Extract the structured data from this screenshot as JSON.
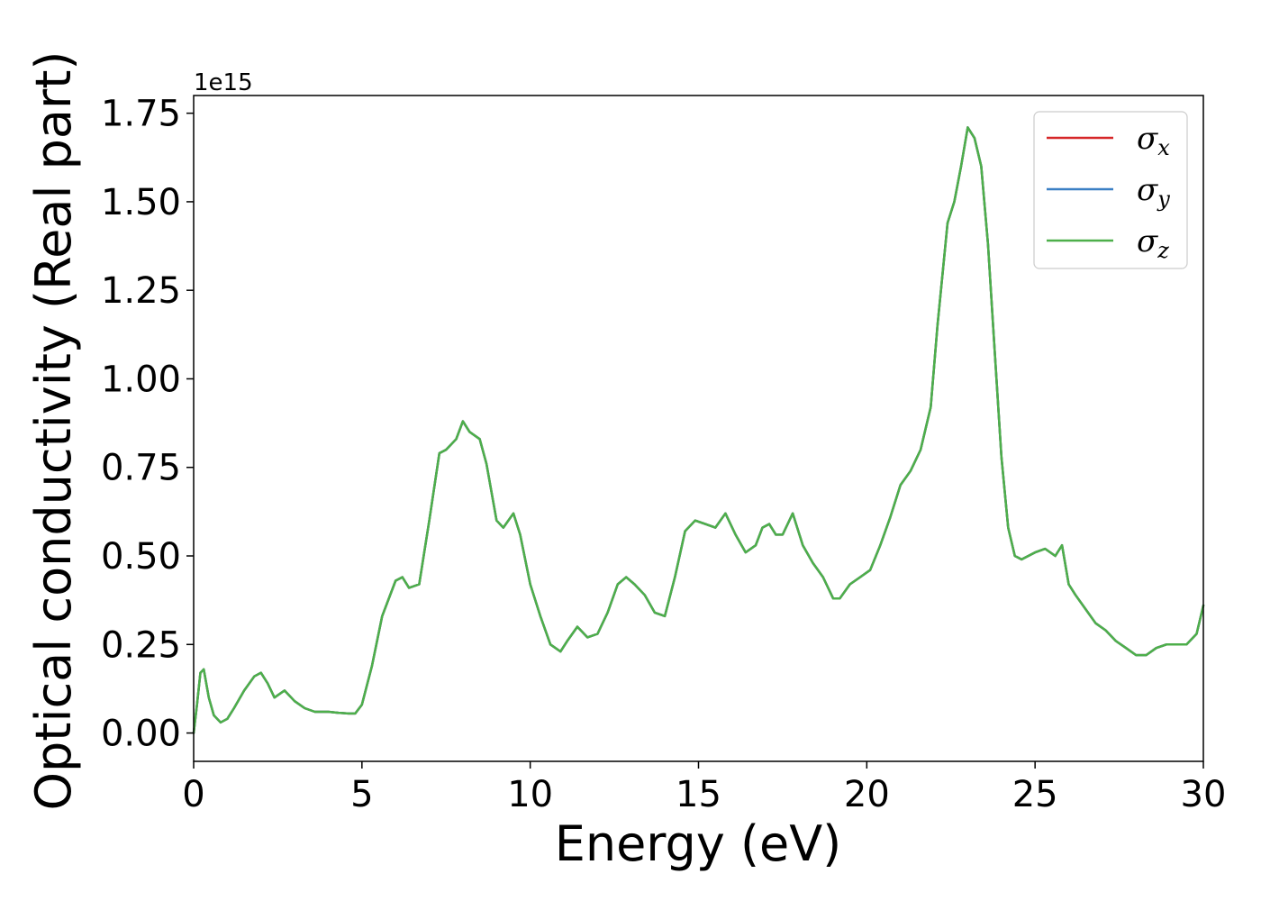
{
  "chart_data": {
    "type": "line",
    "xlabel": "Energy (eV)",
    "ylabel": "Optical conductivity (Real part)",
    "y_offset_label": "1e15",
    "xlim": [
      0,
      30
    ],
    "ylim": [
      -0.08,
      1.8
    ],
    "xticks": [
      "0",
      "5",
      "10",
      "15",
      "20",
      "25",
      "30"
    ],
    "yticks": [
      "0.00",
      "0.25",
      "0.50",
      "0.75",
      "1.00",
      "1.25",
      "1.50",
      "1.75"
    ],
    "grid": false,
    "legend_position": "top-right",
    "series": [
      {
        "name": "σx",
        "symbol": "σ",
        "subscript": "x",
        "color": "#d62728",
        "ref": "shared"
      },
      {
        "name": "σy",
        "symbol": "σ",
        "subscript": "y",
        "color": "#3a7fc4",
        "ref": "shared"
      },
      {
        "name": "σz",
        "symbol": "σ",
        "subscript": "z",
        "color": "#4daf4a",
        "ref": "shared"
      }
    ],
    "shared_curve": {
      "x": [
        0.0,
        0.1,
        0.2,
        0.3,
        0.45,
        0.6,
        0.8,
        1.0,
        1.2,
        1.5,
        1.8,
        2.0,
        2.2,
        2.4,
        2.7,
        3.0,
        3.3,
        3.6,
        3.8,
        4.0,
        4.3,
        4.6,
        4.8,
        5.0,
        5.3,
        5.6,
        6.0,
        6.2,
        6.4,
        6.7,
        7.0,
        7.3,
        7.5,
        7.8,
        8.0,
        8.2,
        8.5,
        8.7,
        9.0,
        9.2,
        9.5,
        9.7,
        10.0,
        10.3,
        10.6,
        10.9,
        11.1,
        11.4,
        11.7,
        12.0,
        12.3,
        12.6,
        12.85,
        13.1,
        13.4,
        13.7,
        14.0,
        14.3,
        14.6,
        14.9,
        15.2,
        15.5,
        15.8,
        16.1,
        16.4,
        16.7,
        16.9,
        17.1,
        17.3,
        17.5,
        17.8,
        18.1,
        18.4,
        18.7,
        19.0,
        19.2,
        19.5,
        19.8,
        20.1,
        20.4,
        20.7,
        21.0,
        21.3,
        21.6,
        21.9,
        22.1,
        22.4,
        22.6,
        22.8,
        23.0,
        23.2,
        23.4,
        23.6,
        23.8,
        24.0,
        24.2,
        24.4,
        24.6,
        24.8,
        25.0,
        25.3,
        25.6,
        25.8,
        26.0,
        26.2,
        26.5,
        26.8,
        27.1,
        27.4,
        27.7,
        28.0,
        28.3,
        28.6,
        28.9,
        29.2,
        29.5,
        29.8,
        30.0
      ],
      "y": [
        0.0,
        0.08,
        0.17,
        0.18,
        0.1,
        0.05,
        0.03,
        0.04,
        0.07,
        0.12,
        0.16,
        0.17,
        0.14,
        0.1,
        0.12,
        0.09,
        0.07,
        0.06,
        0.06,
        0.06,
        0.057,
        0.055,
        0.055,
        0.08,
        0.19,
        0.33,
        0.43,
        0.44,
        0.41,
        0.42,
        0.6,
        0.79,
        0.8,
        0.83,
        0.88,
        0.85,
        0.83,
        0.76,
        0.6,
        0.58,
        0.62,
        0.56,
        0.42,
        0.33,
        0.25,
        0.23,
        0.26,
        0.3,
        0.27,
        0.28,
        0.34,
        0.42,
        0.44,
        0.42,
        0.39,
        0.34,
        0.33,
        0.44,
        0.57,
        0.6,
        0.59,
        0.58,
        0.62,
        0.56,
        0.51,
        0.53,
        0.58,
        0.59,
        0.56,
        0.56,
        0.62,
        0.53,
        0.48,
        0.44,
        0.38,
        0.38,
        0.42,
        0.44,
        0.46,
        0.53,
        0.61,
        0.7,
        0.74,
        0.8,
        0.92,
        1.15,
        1.44,
        1.5,
        1.6,
        1.71,
        1.68,
        1.6,
        1.38,
        1.08,
        0.78,
        0.58,
        0.5,
        0.49,
        0.5,
        0.51,
        0.52,
        0.5,
        0.53,
        0.42,
        0.39,
        0.35,
        0.31,
        0.29,
        0.26,
        0.24,
        0.22,
        0.22,
        0.24,
        0.25,
        0.25,
        0.25,
        0.28,
        0.36
      ]
    }
  }
}
